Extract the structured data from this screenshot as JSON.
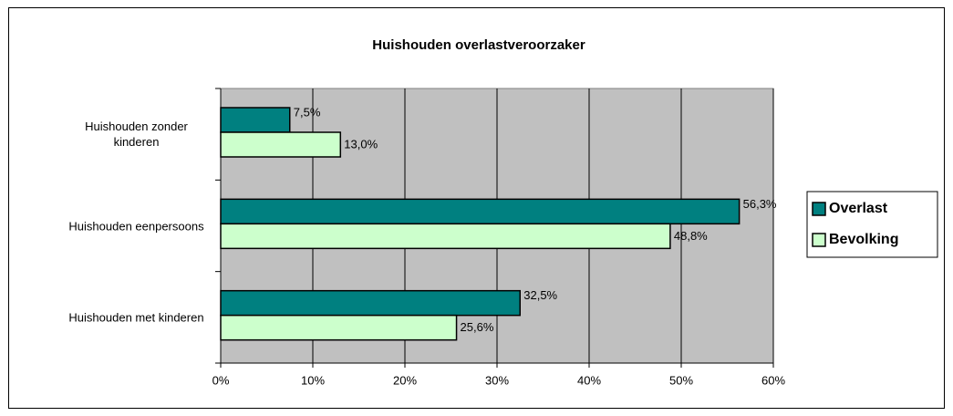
{
  "chart_data": {
    "type": "bar",
    "orientation": "horizontal",
    "title": "Huishouden overlastveroorzaker",
    "categories": [
      "Huishouden zonder kinderen",
      "Huishouden eenpersoons",
      "Huishouden met kinderen"
    ],
    "series": [
      {
        "name": "Overlast",
        "color": "#008080",
        "values": [
          7.5,
          56.3,
          32.5
        ],
        "value_labels": [
          "7,5%",
          "56,3%",
          "32,5%"
        ]
      },
      {
        "name": "Bevolking",
        "color": "#ccffcc",
        "values": [
          13.0,
          48.8,
          25.6
        ],
        "value_labels": [
          "13,0%",
          "48,8%",
          "25,6%"
        ]
      }
    ],
    "xlim": [
      0,
      60
    ],
    "xticks": [
      {
        "value": 0,
        "label": "0%"
      },
      {
        "value": 10,
        "label": "10%"
      },
      {
        "value": 20,
        "label": "20%"
      },
      {
        "value": 30,
        "label": "30%"
      },
      {
        "value": 40,
        "label": "40%"
      },
      {
        "value": 50,
        "label": "50%"
      },
      {
        "value": 60,
        "label": "60%"
      }
    ],
    "grid": true,
    "legend": "right"
  }
}
